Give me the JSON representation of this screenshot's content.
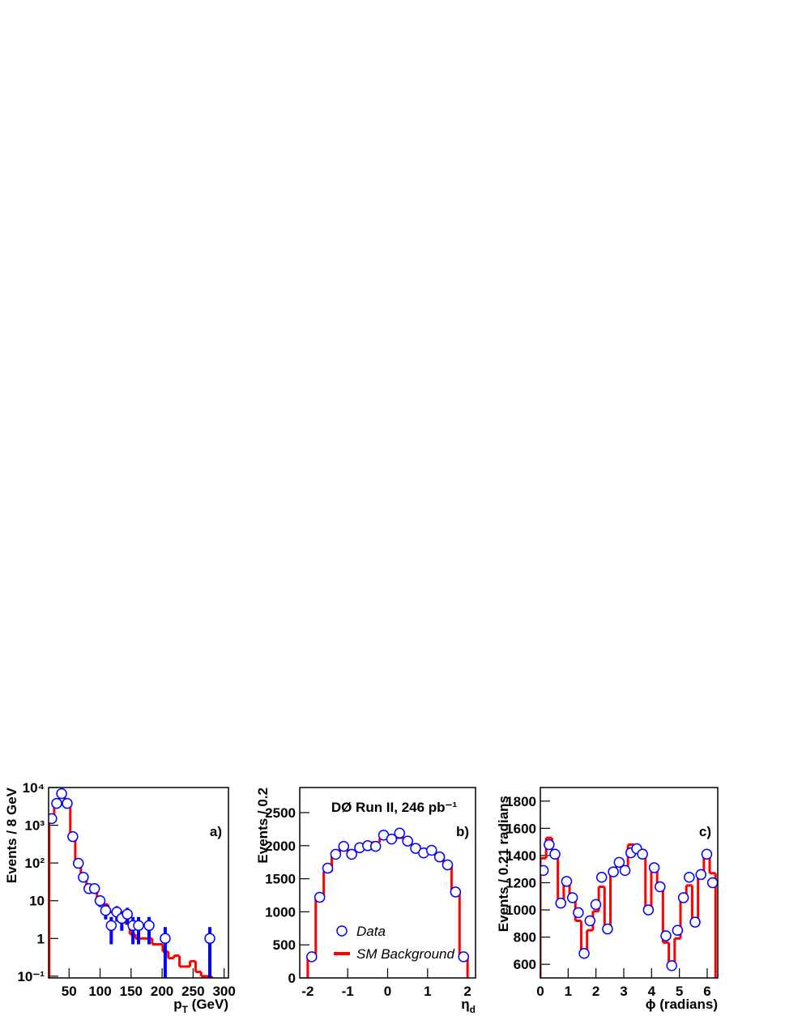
{
  "chart_data": [
    {
      "type": "scatter",
      "ylabel": "Events / 8 GeV",
      "xlabel": {
        "main": "p",
        "sub": "T",
        "rest": " (GeV)"
      },
      "annotation": "a)",
      "xlim": [
        17,
        307
      ],
      "ylim": [
        0.09,
        10000
      ],
      "log_y": true,
      "xticks": [
        50,
        100,
        150,
        200,
        250,
        300
      ],
      "yticks": [
        {
          "value": 0.1,
          "label": "10⁻¹"
        },
        1,
        10,
        {
          "value": 100,
          "label": "10²"
        },
        {
          "value": 1000,
          "label": "10³"
        },
        {
          "value": 10000,
          "label": "10⁴"
        }
      ],
      "series": [
        {
          "color": "#0000ff",
          "x": [
            22,
            30,
            38,
            47,
            56,
            65,
            73,
            82,
            91,
            100,
            109,
            118,
            127,
            135,
            144,
            153,
            162,
            179,
            205,
            277
          ],
          "values": [
            1500,
            3800,
            6900,
            3800,
            500,
            98,
            42,
            21,
            21,
            10,
            5.5,
            2.2,
            5,
            3.4,
            4.4,
            2.2,
            2.2,
            2.2,
            1,
            1
          ],
          "errors": [
            39,
            62,
            83,
            62,
            22,
            10,
            6.5,
            4.6,
            4.6,
            3.2,
            2.3,
            1.5,
            2.2,
            1.8,
            2.1,
            1.5,
            1.5,
            1.5,
            1,
            1
          ]
        }
      ],
      "background": {
        "color": "#ff0000",
        "bins": [
          18,
          26,
          34,
          43,
          52,
          60,
          69,
          78,
          87,
          95,
          104,
          113,
          122,
          131,
          140,
          148,
          157,
          166,
          175,
          184,
          192,
          201,
          210,
          219,
          228,
          236,
          245,
          254,
          263,
          272,
          280
        ],
        "counts": [
          1600,
          4000,
          7500,
          3800,
          500,
          95,
          42,
          21,
          20,
          10,
          8,
          5,
          4,
          3.5,
          2.5,
          1.3,
          1,
          1,
          1,
          0.7,
          0.7,
          0.45,
          0.3,
          0.35,
          0.18,
          0.18,
          0.25,
          0.13,
          0.1,
          0.1
        ]
      }
    },
    {
      "type": "scatter",
      "ylabel": "Events / 0.2",
      "xlabel": {
        "main": "η",
        "sub": "d"
      },
      "annotation": "b)",
      "title": "DØ Run II, 246 pb⁻¹",
      "xlim": [
        -2.2,
        2.2
      ],
      "ylim": [
        0,
        2880
      ],
      "log_y": false,
      "xticks": [
        -2,
        -1,
        0,
        1,
        2
      ],
      "yticks": [
        0,
        500,
        1000,
        1500,
        2000,
        2500
      ],
      "series": [
        {
          "name": "Data",
          "color": "#0000ff",
          "x": [
            -1.9,
            -1.7,
            -1.5,
            -1.3,
            -1.1,
            -0.9,
            -0.7,
            -0.5,
            -0.3,
            -0.1,
            0.1,
            0.3,
            0.5,
            0.7,
            0.9,
            1.1,
            1.3,
            1.5,
            1.7,
            1.9
          ],
          "values": [
            320,
            1220,
            1660,
            1870,
            1990,
            1870,
            1970,
            2000,
            1990,
            2160,
            2100,
            2190,
            2070,
            1960,
            1890,
            1930,
            1830,
            1710,
            1300,
            320
          ]
        }
      ],
      "background": {
        "name": "SM Background",
        "color": "#ff0000",
        "bins": [
          -2,
          -1.8,
          -1.6,
          -1.4,
          -1.2,
          -1,
          -0.8,
          -0.6,
          -0.4,
          -0.2,
          0,
          0.2,
          0.4,
          0.6,
          0.8,
          1,
          1.2,
          1.4,
          1.6,
          1.8,
          2
        ],
        "counts": [
          300,
          1230,
          1610,
          1900,
          2010,
          1900,
          2000,
          2020,
          2050,
          2110,
          2130,
          2120,
          2060,
          2010,
          1920,
          1920,
          1820,
          1710,
          1290,
          350
        ]
      }
    },
    {
      "type": "scatter",
      "ylabel": "Events / 0.21 radians",
      "xlabel": {
        "main": "ϕ (radians)"
      },
      "annotation": "c)",
      "xlim": [
        0,
        6.38
      ],
      "ylim": [
        500,
        1900
      ],
      "log_y": false,
      "xticks": [
        0,
        1,
        2,
        3,
        4,
        5,
        6
      ],
      "yticks": [
        600,
        800,
        1000,
        1200,
        1400,
        1600,
        1800
      ],
      "series": [
        {
          "color": "#0000ff",
          "x": [
            0.105,
            0.315,
            0.525,
            0.735,
            0.945,
            1.155,
            1.365,
            1.575,
            1.785,
            1.995,
            2.205,
            2.415,
            2.625,
            2.835,
            3.045,
            3.255,
            3.465,
            3.675,
            3.885,
            4.095,
            4.305,
            4.515,
            4.725,
            4.935,
            5.145,
            5.355,
            5.565,
            5.775,
            5.985,
            6.195
          ],
          "values": [
            1290,
            1480,
            1410,
            1050,
            1210,
            1090,
            980,
            680,
            920,
            1040,
            1240,
            860,
            1280,
            1350,
            1290,
            1420,
            1450,
            1410,
            1000,
            1310,
            1170,
            810,
            590,
            850,
            1090,
            1240,
            910,
            1260,
            1410,
            1200
          ]
        }
      ],
      "background": {
        "color": "#ff0000",
        "bins": [
          0,
          0.21,
          0.42,
          0.63,
          0.84,
          1.05,
          1.26,
          1.47,
          1.68,
          1.89,
          2.1,
          2.31,
          2.52,
          2.73,
          2.94,
          3.15,
          3.36,
          3.57,
          3.78,
          3.99,
          4.2,
          4.41,
          4.62,
          4.83,
          5.04,
          5.25,
          5.46,
          5.67,
          5.88,
          6.09,
          6.3
        ],
        "counts": [
          1380,
          1530,
          1410,
          1080,
          1230,
          1100,
          920,
          680,
          850,
          990,
          1170,
          860,
          1300,
          1330,
          1320,
          1480,
          1470,
          1440,
          1010,
          1320,
          1160,
          760,
          590,
          790,
          1070,
          1180,
          900,
          1250,
          1400,
          1270
        ]
      }
    }
  ]
}
